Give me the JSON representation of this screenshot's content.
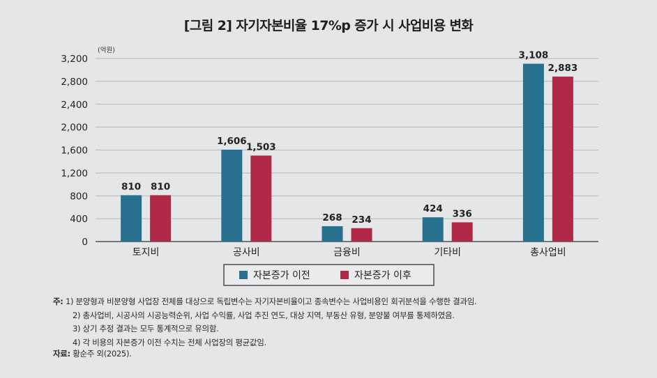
{
  "title": "[그림 2] 자기자본비율 17%p 증가 시 사업비용 변화",
  "chart_data": {
    "type": "bar",
    "unit_label": "(억원)",
    "categories": [
      "토지비",
      "공사비",
      "금융비",
      "기타비",
      "총사업비"
    ],
    "series": [
      {
        "name": "자본증가 이전",
        "values": [
          810,
          1606,
          268,
          424,
          3108
        ],
        "labels": [
          "810",
          "1,606",
          "268",
          "424",
          "3,108"
        ],
        "color": "#27708f"
      },
      {
        "name": "자본증가 이후",
        "values": [
          810,
          1503,
          234,
          336,
          2883
        ],
        "labels": [
          "810",
          "1,503",
          "234",
          "336",
          "2,883"
        ],
        "color": "#b02a48"
      }
    ],
    "yticks": [
      0,
      400,
      800,
      1200,
      1600,
      2000,
      2400,
      2800,
      3200
    ],
    "ytick_labels": [
      "0",
      "400",
      "800",
      "1,200",
      "1,600",
      "2,000",
      "2,400",
      "2,800",
      "3,200"
    ],
    "ylim": [
      0,
      3200
    ],
    "grid": true,
    "legend_position": "bottom-center"
  },
  "notes": {
    "label": "주:",
    "items": [
      "1) 분양형과 비분양형 사업장 전체를 대상으로 독립변수는 자기자본비율이고 종속변수는 사업비용인 회귀분석을 수행한 결과임.",
      "2) 총사업비, 시공사의 시공능력순위, 사업 수익률, 사업 추진 연도, 대상 지역, 부동산 유형, 분양불 여부를 통제하였음.",
      "3) 상기 추정 결과는 모두 통계적으로 유의함.",
      "4) 각 비용의 자본증가 이전 수치는 전체 사업장의 평균값임."
    ]
  },
  "source": {
    "label": "자료:",
    "text": "황순주 외(2025)."
  }
}
